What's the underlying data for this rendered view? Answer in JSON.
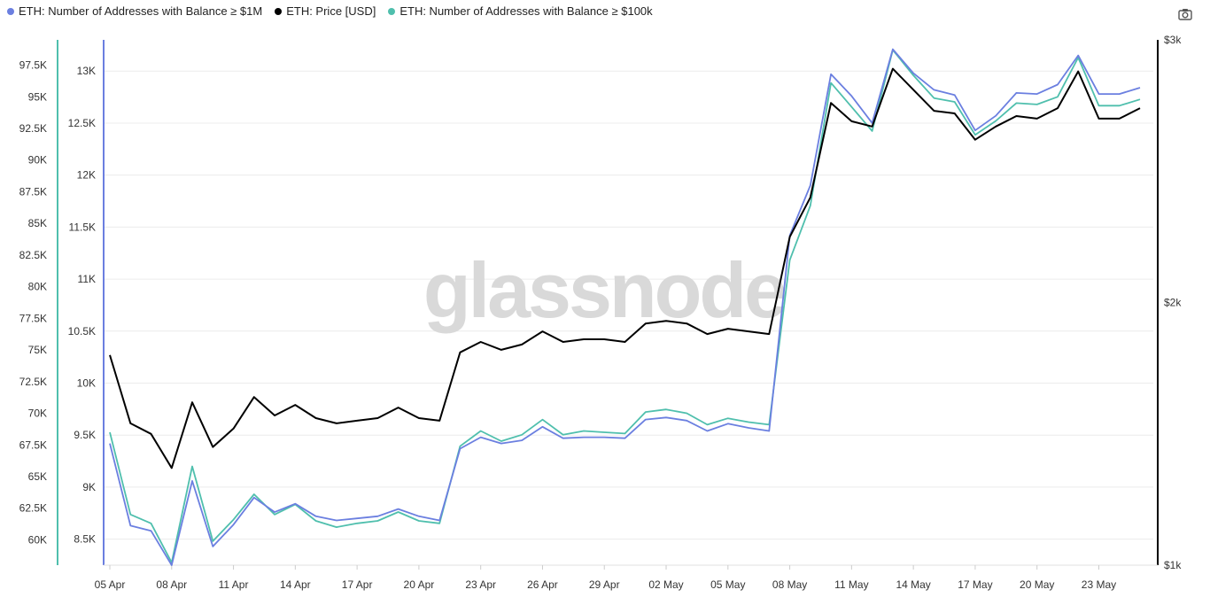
{
  "watermark": "glassnode",
  "legend": [
    {
      "label": "ETH: Number of Addresses with Balance ≥ $1M",
      "color": "#6b7fe0"
    },
    {
      "label": "ETH: Price [USD]",
      "color": "#000000"
    },
    {
      "label": "ETH: Number of Addresses with Balance ≥ $100k",
      "color": "#4fbfad"
    }
  ],
  "icons": {
    "camera": "camera-icon"
  },
  "chart_data": {
    "type": "line",
    "title": "",
    "x_tick_labels": [
      "05 Apr",
      "08 Apr",
      "11 Apr",
      "14 Apr",
      "17 Apr",
      "20 Apr",
      "23 Apr",
      "26 Apr",
      "29 Apr",
      "02 May",
      "05 May",
      "08 May",
      "11 May",
      "14 May",
      "17 May",
      "20 May",
      "23 May"
    ],
    "x_start_label": "05 Apr",
    "axes": {
      "y_1m": {
        "ticks": [
          "8.5K",
          "9K",
          "9.5K",
          "10K",
          "10.5K",
          "11K",
          "11.5K",
          "12K",
          "12.5K",
          "13K"
        ],
        "tick_values": [
          8500,
          9000,
          9500,
          10000,
          10500,
          11000,
          11500,
          12000,
          12500,
          13000
        ],
        "range": [
          8250,
          13300
        ],
        "color": "#6b7fe0"
      },
      "y_100k": {
        "ticks": [
          "60K",
          "62.5K",
          "65K",
          "67.5K",
          "70K",
          "72.5K",
          "75K",
          "77.5K",
          "80K",
          "82.5K",
          "85K",
          "87.5K",
          "90K",
          "92.5K",
          "95K",
          "97.5K"
        ],
        "tick_values": [
          60000,
          62500,
          65000,
          67500,
          70000,
          72500,
          75000,
          77500,
          80000,
          82500,
          85000,
          87500,
          90000,
          92500,
          95000,
          97500
        ],
        "range": [
          58000,
          99500
        ],
        "color": "#4fbfad"
      },
      "y_price": {
        "ticks": [
          "$1k",
          "$2k",
          "$3k"
        ],
        "tick_values": [
          1000,
          2000,
          3000
        ],
        "range": [
          1000,
          3000
        ],
        "color": "#000000"
      }
    },
    "grid": true,
    "legend_position": "top-left",
    "series": [
      {
        "name": "ETH: Number of Addresses with Balance ≥ $1M",
        "axis": "y_1m",
        "color": "#6b7fe0",
        "values": [
          9420,
          8630,
          8580,
          8250,
          9060,
          8430,
          8640,
          8900,
          8760,
          8840,
          8720,
          8680,
          8700,
          8720,
          8790,
          8720,
          8680,
          9370,
          9480,
          9420,
          9450,
          9580,
          9470,
          9480,
          9480,
          9470,
          9650,
          9670,
          9640,
          9540,
          9610,
          9570,
          9540,
          11420,
          11900,
          12970,
          12760,
          12500,
          13210,
          12980,
          12820,
          12770,
          12430,
          12570,
          12790,
          12780,
          12870,
          13150,
          12780,
          12780,
          12840
        ]
      },
      {
        "name": "ETH: Price [USD]",
        "axis": "y_price",
        "color": "#000000",
        "values": [
          1800,
          1540,
          1500,
          1370,
          1620,
          1450,
          1520,
          1640,
          1570,
          1610,
          1560,
          1540,
          1550,
          1560,
          1600,
          1560,
          1550,
          1810,
          1850,
          1820,
          1840,
          1890,
          1850,
          1860,
          1860,
          1850,
          1920,
          1930,
          1920,
          1880,
          1900,
          1890,
          1880,
          2250,
          2400,
          2760,
          2690,
          2670,
          2890,
          2810,
          2730,
          2720,
          2620,
          2670,
          2710,
          2700,
          2740,
          2880,
          2700,
          2700,
          2740
        ]
      },
      {
        "name": "ETH: Number of Addresses with Balance ≥ $100k",
        "axis": "y_100k",
        "color": "#4fbfad",
        "values": [
          68500,
          62000,
          61300,
          58200,
          65800,
          59900,
          61600,
          63600,
          62000,
          62800,
          61500,
          61000,
          61300,
          61500,
          62200,
          61500,
          61300,
          67400,
          68600,
          67800,
          68300,
          69500,
          68300,
          68600,
          68500,
          68400,
          70100,
          70300,
          70000,
          69100,
          69600,
          69300,
          69100,
          82100,
          86400,
          96100,
          94200,
          92300,
          98700,
          96700,
          94900,
          94600,
          92000,
          93100,
          94500,
          94400,
          95000,
          98100,
          94300,
          94300,
          94800
        ]
      }
    ]
  }
}
